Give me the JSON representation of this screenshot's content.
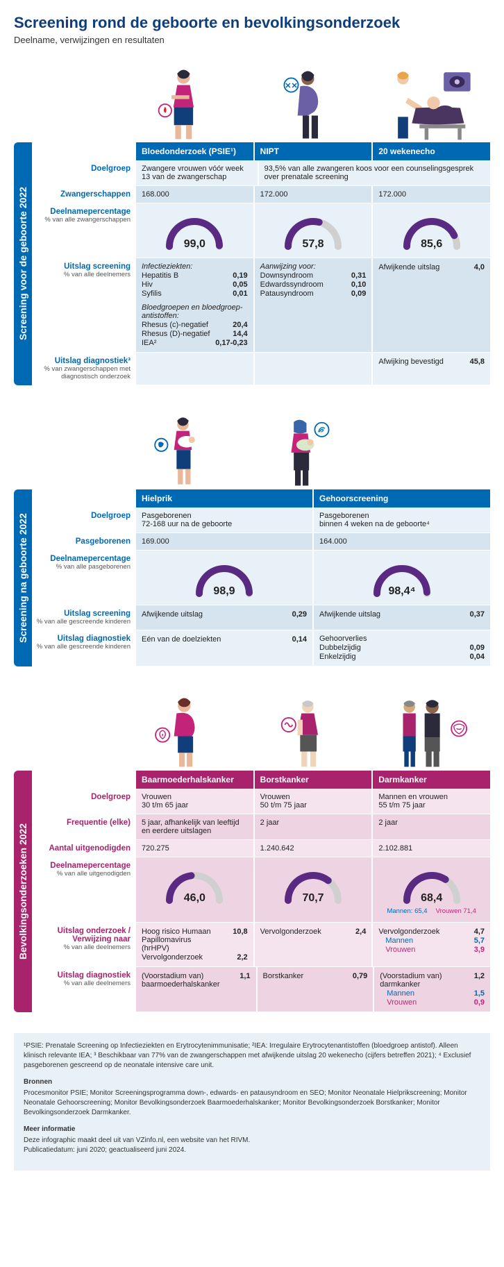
{
  "title": "Screening rond de geboorte en bevolkingsonderzoek",
  "subtitle": "Deelname, verwijzingen en resultaten",
  "gauge_colors": {
    "fg": "#5a2a82",
    "bg": "#d0d0d0"
  },
  "section1": {
    "vtab": "Screening voor de geboorte 2022",
    "headers": [
      "Bloedonderzoek (PSIE¹)",
      "NIPT",
      "20 wekenecho"
    ],
    "rows": {
      "doelgroep": {
        "label": "Doelgroep",
        "c1": "Zwangere vrouwen vóór week 13 van de zwangerschap",
        "c2_span": "93,5% van alle zwangeren koos voor een counselingsgesprek over prenatale screening"
      },
      "zwanger": {
        "label": "Zwangerschappen",
        "c1": "168.000",
        "c2": "172.000",
        "c3": "172.000"
      },
      "deelname": {
        "label": "Deelnamepercentage",
        "sublabel": "% van alle zwangerschappen",
        "g1": {
          "value": 99.0,
          "label": "99,0"
        },
        "g2": {
          "value": 57.8,
          "label": "57,8"
        },
        "g3": {
          "value": 85.6,
          "label": "85,6"
        }
      },
      "uitslag_scr": {
        "label": "Uitslag screening",
        "sublabel": "% van alle deelnemers",
        "c1_header1": "Infectieziekten:",
        "c1_items1": [
          {
            "k": "Hepatitis B",
            "v": "0,19"
          },
          {
            "k": "Hiv",
            "v": "0,05"
          },
          {
            "k": "Syfilis",
            "v": "0,01"
          }
        ],
        "c1_header2": "Bloedgroepen en bloedgroep-antistoffen:",
        "c1_items2": [
          {
            "k": "Rhesus (c)-negatief",
            "v": "20,4"
          },
          {
            "k": "Rhesus (D)-negatief",
            "v": "14,4"
          },
          {
            "k": "IEA²",
            "v": "0,17-0,23"
          }
        ],
        "c2_header": "Aanwijzing voor:",
        "c2_items": [
          {
            "k": "Downsyndroom",
            "v": "0,31"
          },
          {
            "k": "Edwardssyndroom",
            "v": "0,10"
          },
          {
            "k": "Patausyndroom",
            "v": "0,09"
          }
        ],
        "c3_items": [
          {
            "k": "Afwijkende uitslag",
            "v": "4,0"
          }
        ]
      },
      "uitslag_diag": {
        "label": "Uitslag diagnostiek³",
        "sublabel": "% van zwangerschappen met diagnostisch onderzoek",
        "c3_items": [
          {
            "k": "Afwijking bevestigd",
            "v": "45,8"
          }
        ]
      }
    }
  },
  "section2": {
    "vtab": "Screening na geboorte 2022",
    "headers": [
      "Hielprik",
      "Gehoorscreening"
    ],
    "rows": {
      "doelgroep": {
        "label": "Doelgroep",
        "c1": "Pasgeborenen\n72-168 uur na de geboorte",
        "c2": "Pasgeborenen\nbinnen 4 weken na de geboorte⁴"
      },
      "pasgeb": {
        "label": "Pasgeborenen",
        "c1": "169.000",
        "c2": "164.000"
      },
      "deelname": {
        "label": "Deelnamepercentage",
        "sublabel": "% van alle pasgeborenen",
        "g1": {
          "value": 98.9,
          "label": "98,9"
        },
        "g2": {
          "value": 98.4,
          "label": "98,4⁴"
        }
      },
      "uitslag_scr": {
        "label": "Uitslag screening",
        "sublabel": "% van alle gescreende kinderen",
        "c1_items": [
          {
            "k": "Afwijkende uitslag",
            "v": "0,29"
          }
        ],
        "c2_items": [
          {
            "k": "Afwijkende uitslag",
            "v": "0,37"
          }
        ]
      },
      "uitslag_diag": {
        "label": "Uitslag diagnostiek",
        "sublabel": "% van alle gescreende kinderen",
        "c1_items": [
          {
            "k": "Eén van de doelziekten",
            "v": "0,14"
          }
        ],
        "c2_header": "Gehoorverlies",
        "c2_items": [
          {
            "k": "Dubbelzijdig",
            "v": "0,09"
          },
          {
            "k": "Enkelzijdig",
            "v": "0,04"
          }
        ]
      }
    }
  },
  "section3": {
    "vtab": "Bevolkingsonderzoeken 2022",
    "headers": [
      "Baarmoederhalskanker",
      "Borstkanker",
      "Darmkanker"
    ],
    "rows": {
      "doelgroep": {
        "label": "Doelgroep",
        "c1": "Vrouwen\n30 t/m 65 jaar",
        "c2": "Vrouwen\n50 t/m 75 jaar",
        "c3": "Mannen en vrouwen\n55 t/m 75 jaar"
      },
      "freq": {
        "label": "Frequentie (elke)",
        "c1": "5 jaar, afhankelijk van leeftijd en eerdere uitslagen",
        "c2": "2 jaar",
        "c3": "2 jaar"
      },
      "aantal": {
        "label": "Aantal uitgenodigden",
        "c1": "720.275",
        "c2": "1.240.642",
        "c3": "2.102.881"
      },
      "deelname": {
        "label": "Deelnamepercentage",
        "sublabel": "% van alle uitgenodigden",
        "g1": {
          "value": 46.0,
          "label": "46,0"
        },
        "g2": {
          "value": 70.7,
          "label": "70,7"
        },
        "g3": {
          "value": 68.4,
          "label": "68,4",
          "gender": {
            "m_label": "Mannen:",
            "m": "65,4",
            "f_label": "Vrouwen",
            "f": "71,4"
          }
        }
      },
      "uitslag_ond": {
        "label": "Uitslag onderzoek / Verwijzing naar",
        "sublabel": "% van alle deelnemers",
        "c1_items": [
          {
            "k": "Hoog risico Humaan Papillomavirus (hrHPV)",
            "v": "10,8"
          },
          {
            "k": "Vervolgonderzoek",
            "v": "2,2"
          }
        ],
        "c2_items": [
          {
            "k": "Vervolgonderzoek",
            "v": "2,4"
          }
        ],
        "c3_items": [
          {
            "k": "Vervolgonderzoek",
            "v": "4,7"
          },
          {
            "k": "Mannen",
            "v": "5,7",
            "sub": true,
            "kcolor": "blue",
            "vcolor": "blue"
          },
          {
            "k": "Vrouwen",
            "v": "3,9",
            "sub": true,
            "kcolor": "mag",
            "vcolor": "mag"
          }
        ]
      },
      "uitslag_diag": {
        "label": "Uitslag diagnostiek",
        "sublabel": "% van alle deelnemers",
        "c1_items": [
          {
            "k": "(Voorstadium van) baarmoederhalskanker",
            "v": "1,1"
          }
        ],
        "c2_items": [
          {
            "k": "Borstkanker",
            "v": "0,79"
          }
        ],
        "c3_items": [
          {
            "k": "(Voorstadium van) darmkanker",
            "v": "1,2"
          },
          {
            "k": "Mannen",
            "v": "1,5",
            "sub": true,
            "kcolor": "blue",
            "vcolor": "blue"
          },
          {
            "k": "Vrouwen",
            "v": "0,9",
            "sub": true,
            "kcolor": "mag",
            "vcolor": "mag"
          }
        ]
      }
    }
  },
  "footnotes": {
    "defs": "¹PSIE: Prenatale Screening op Infectieziekten en Erytrocytenimmunisatie; ²IEA: Irregulaire Erytrocytenantistoffen (bloedgroep antistof). Alleen klinisch relevante IEA; ³ Beschikbaar van 77% van de zwangerschappen met afwijkende uitslag 20 wekenecho (cijfers betreffen 2021); ⁴ Exclusief pasgeborenen gescreend op de neonatale intensive care unit.",
    "bronnen_h": "Bronnen",
    "bronnen": "Procesmonitor PSIE; Monitor Screeningsprogramma down-, edwards- en patausyndroom en SEO; Monitor Neonatale Hielprikscreening; Monitor Neonatale Gehoorscreening; Monitor Bevolkingsonderzoek Baarmoederhalskanker; Monitor Bevolkingsonderzoek Borstkanker; Monitor Bevolkingsonderzoek Darmkanker.",
    "meer_h": "Meer informatie",
    "meer": "Deze infographic maakt deel uit van VZinfo.nl, een website van het RIVM.\nPublicatiedatum: juni 2020; geactualiseerd juni 2024."
  }
}
